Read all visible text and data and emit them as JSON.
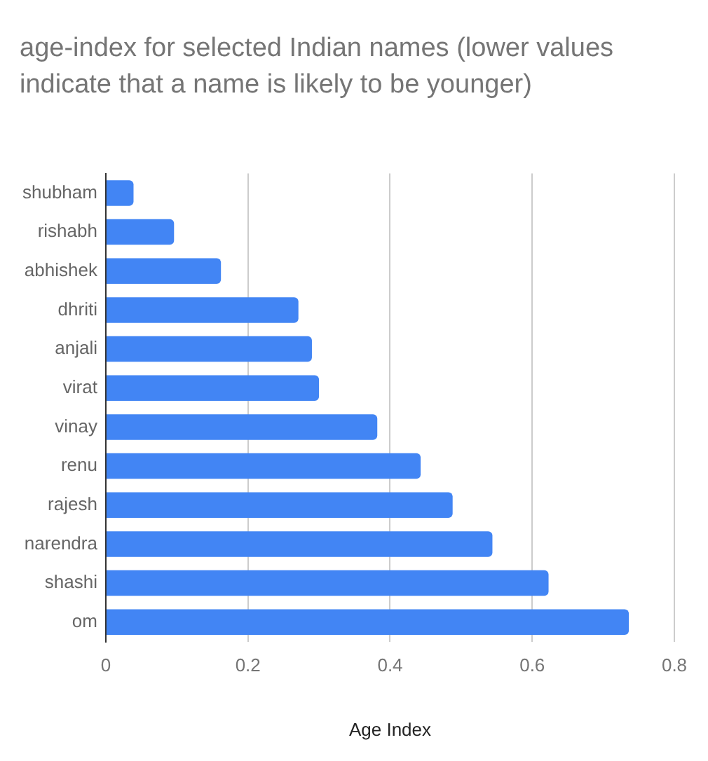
{
  "chart_data": {
    "type": "bar",
    "orientation": "horizontal",
    "title": "age-index for selected Indian names (lower values indicate that a name is likely to be younger)",
    "xlabel": "Age Index",
    "categories": [
      "shubham",
      "rishabh",
      "abhishek",
      "dhriti",
      "anjali",
      "virat",
      "vinay",
      "renu",
      "rajesh",
      "narendra",
      "shashi",
      "om"
    ],
    "values": [
      0.039,
      0.096,
      0.162,
      0.271,
      0.29,
      0.3,
      0.382,
      0.443,
      0.488,
      0.544,
      0.623,
      0.736
    ],
    "color": "#4285f4",
    "xlim": [
      0,
      0.8
    ],
    "xticks": [
      0,
      0.2,
      0.4,
      0.6,
      0.8
    ],
    "grid": "x",
    "legend": false
  }
}
